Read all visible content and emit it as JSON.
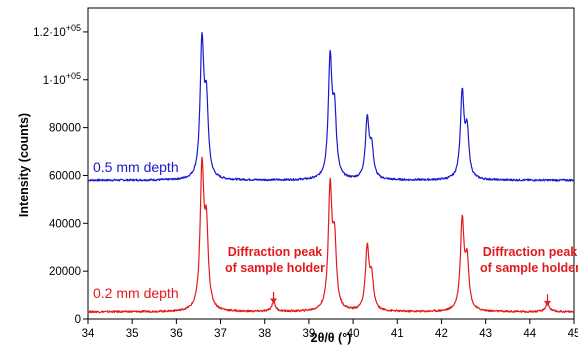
{
  "chart_data": {
    "type": "line",
    "xlabel": "2θ/θ (°)",
    "ylabel": "Intensity (counts)",
    "xlim": [
      34,
      45
    ],
    "ylim": [
      0,
      130000
    ],
    "x_ticks": [
      34,
      35,
      36,
      37,
      38,
      39,
      40,
      41,
      42,
      43,
      44,
      45
    ],
    "x_tick_labels": [
      "34",
      "35",
      "36",
      "37",
      "38",
      "39",
      "40",
      "41",
      "42",
      "43",
      "44",
      "45"
    ],
    "y_ticks": [
      0,
      20000,
      40000,
      60000,
      80000,
      100000,
      120000
    ],
    "y_tick_labels": [
      "0",
      "20000",
      "40000",
      "60000",
      "80000",
      "1·10+05",
      "1.2·10+05"
    ],
    "grid": false,
    "legend": "none",
    "series": [
      {
        "name": "0.5 mm depth",
        "color": "#1a1acc",
        "baseline": 58000,
        "peaks": [
          {
            "x": 36.58,
            "height": 56000
          },
          {
            "x": 36.68,
            "height": 30000
          },
          {
            "x": 39.48,
            "height": 49000
          },
          {
            "x": 39.58,
            "height": 26000
          },
          {
            "x": 40.32,
            "height": 24500
          },
          {
            "x": 40.42,
            "height": 12500
          },
          {
            "x": 42.47,
            "height": 35500
          },
          {
            "x": 42.58,
            "height": 19000
          }
        ]
      },
      {
        "name": "0.2 mm depth",
        "color": "#e31a1c",
        "baseline": 3000,
        "peaks": [
          {
            "x": 36.58,
            "height": 58000
          },
          {
            "x": 36.68,
            "height": 32000
          },
          {
            "x": 38.2,
            "height": 4000
          },
          {
            "x": 39.48,
            "height": 50000
          },
          {
            "x": 39.58,
            "height": 27000
          },
          {
            "x": 40.32,
            "height": 25500
          },
          {
            "x": 40.42,
            "height": 13000
          },
          {
            "x": 42.47,
            "height": 37000
          },
          {
            "x": 42.58,
            "height": 20000
          },
          {
            "x": 44.4,
            "height": 3500
          }
        ]
      }
    ],
    "annotations": [
      {
        "lines": [
          "Diffraction peak",
          "of sample holder"
        ],
        "arrow_x": 38.2,
        "arrow_from_y": 10500,
        "arrow_to_y": 6500
      },
      {
        "lines": [
          "Diffraction peak",
          "of sample holder"
        ],
        "arrow_x": 44.4,
        "arrow_from_y": 9500,
        "arrow_to_y": 5500
      }
    ]
  }
}
